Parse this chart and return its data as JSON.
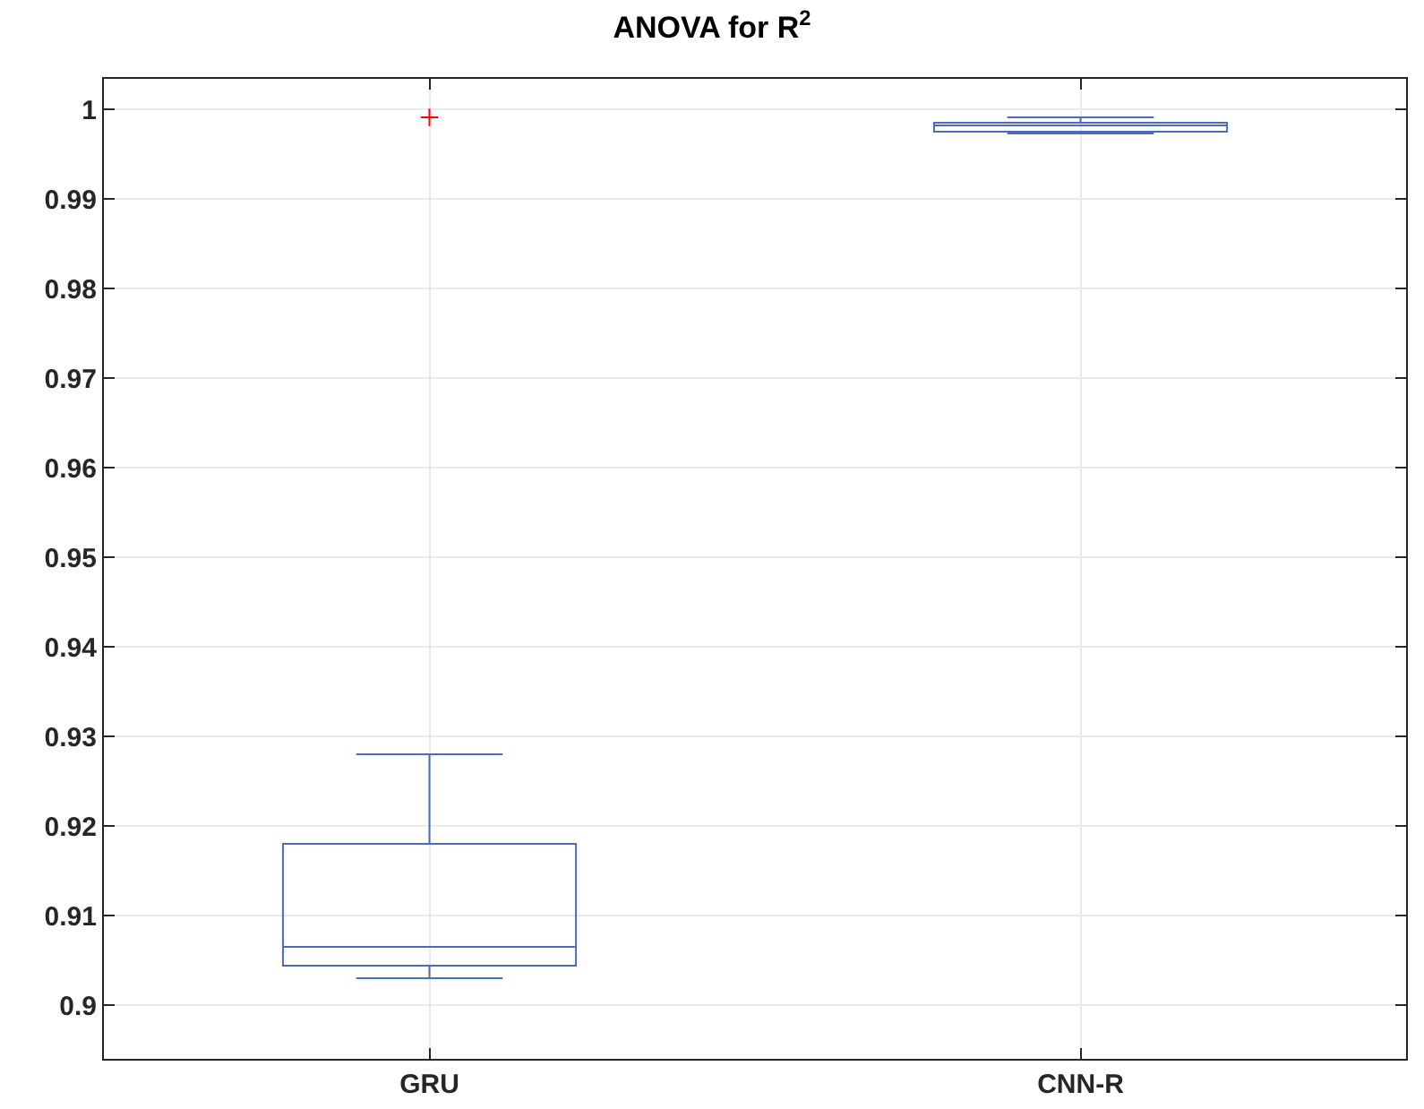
{
  "chart_data": {
    "type": "box",
    "title": "ANOVA for R$^{2}$",
    "categories": [
      "GRU",
      "CNN-R"
    ],
    "boxes": [
      {
        "low": 0.903,
        "q1": 0.9044,
        "median": 0.9065,
        "q3": 0.918,
        "high": 0.928,
        "outliers": [
          0.9991
        ]
      },
      {
        "low": 0.9973,
        "q1": 0.9975,
        "median": 0.9982,
        "q3": 0.9985,
        "high": 0.9991
      }
    ],
    "color": "#4a6bc2",
    "ylim": [
      0.894,
      1.0034
    ],
    "yticks": [
      0.9,
      0.91,
      0.92,
      0.93,
      0.94,
      0.95,
      0.96,
      0.97,
      0.98,
      0.99,
      1
    ],
    "grid": true
  }
}
